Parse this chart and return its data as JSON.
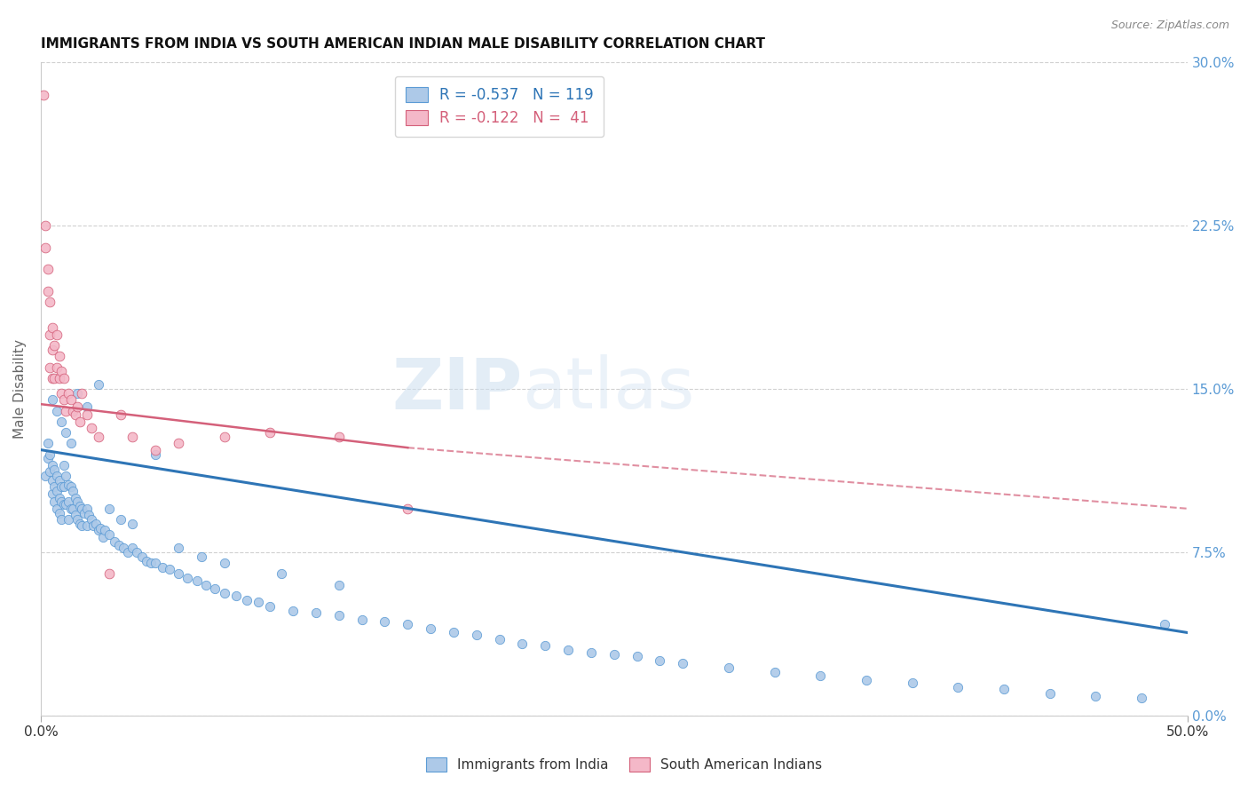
{
  "title": "IMMIGRANTS FROM INDIA VS SOUTH AMERICAN INDIAN MALE DISABILITY CORRELATION CHART",
  "source": "Source: ZipAtlas.com",
  "ylabel": "Male Disability",
  "xlim": [
    0.0,
    0.5
  ],
  "ylim": [
    0.0,
    0.3
  ],
  "xticks": [
    0.0,
    0.5
  ],
  "xtick_labels": [
    "0.0%",
    "50.0%"
  ],
  "yticks": [
    0.0,
    0.075,
    0.15,
    0.225,
    0.3
  ],
  "ytick_labels_right": [
    "0.0%",
    "7.5%",
    "15.0%",
    "22.5%",
    "30.0%"
  ],
  "series_india": {
    "color": "#adc9e8",
    "edge_color": "#5b9bd5",
    "R": -0.537,
    "N": 119,
    "trend_color": "#2e75b6",
    "trend_style": "solid",
    "trend_x0": 0.0,
    "trend_y0": 0.122,
    "trend_x1": 0.5,
    "trend_y1": 0.038
  },
  "series_sa_indian": {
    "color": "#f4b8c8",
    "edge_color": "#d4607a",
    "R": -0.122,
    "N": 41,
    "trend_color": "#d4607a",
    "trend_style": "solid",
    "trend_x0": 0.0,
    "trend_y0": 0.143,
    "trend_x1": 0.16,
    "trend_y1": 0.123,
    "trend_dash_x0": 0.16,
    "trend_dash_y0": 0.123,
    "trend_dash_x1": 0.5,
    "trend_dash_y1": 0.095
  },
  "legend_label_india": "Immigrants from India",
  "legend_label_sa": "South American Indians",
  "watermark_zip": "ZIP",
  "watermark_atlas": "atlas",
  "background_color": "#ffffff",
  "grid_color": "#cccccc",
  "title_fontsize": 11,
  "axis_label_color": "#5b9bd5",
  "india_x": [
    0.002,
    0.003,
    0.003,
    0.004,
    0.004,
    0.005,
    0.005,
    0.005,
    0.006,
    0.006,
    0.006,
    0.007,
    0.007,
    0.007,
    0.008,
    0.008,
    0.008,
    0.009,
    0.009,
    0.009,
    0.01,
    0.01,
    0.01,
    0.011,
    0.011,
    0.012,
    0.012,
    0.012,
    0.013,
    0.013,
    0.014,
    0.014,
    0.015,
    0.015,
    0.016,
    0.016,
    0.017,
    0.017,
    0.018,
    0.018,
    0.019,
    0.02,
    0.02,
    0.021,
    0.022,
    0.023,
    0.024,
    0.025,
    0.026,
    0.027,
    0.028,
    0.03,
    0.032,
    0.034,
    0.036,
    0.038,
    0.04,
    0.042,
    0.044,
    0.046,
    0.048,
    0.05,
    0.053,
    0.056,
    0.06,
    0.064,
    0.068,
    0.072,
    0.076,
    0.08,
    0.085,
    0.09,
    0.095,
    0.1,
    0.11,
    0.12,
    0.13,
    0.14,
    0.15,
    0.16,
    0.17,
    0.18,
    0.19,
    0.2,
    0.21,
    0.22,
    0.23,
    0.24,
    0.25,
    0.26,
    0.27,
    0.28,
    0.3,
    0.32,
    0.34,
    0.36,
    0.38,
    0.4,
    0.42,
    0.44,
    0.46,
    0.48,
    0.005,
    0.007,
    0.009,
    0.011,
    0.013,
    0.016,
    0.02,
    0.025,
    0.03,
    0.035,
    0.04,
    0.05,
    0.06,
    0.07,
    0.08,
    0.105,
    0.13,
    0.49
  ],
  "india_y": [
    0.11,
    0.125,
    0.118,
    0.12,
    0.112,
    0.115,
    0.108,
    0.102,
    0.113,
    0.105,
    0.098,
    0.11,
    0.103,
    0.095,
    0.108,
    0.1,
    0.093,
    0.105,
    0.098,
    0.09,
    0.115,
    0.105,
    0.097,
    0.11,
    0.097,
    0.106,
    0.098,
    0.09,
    0.105,
    0.095,
    0.103,
    0.095,
    0.1,
    0.092,
    0.098,
    0.09,
    0.096,
    0.088,
    0.095,
    0.087,
    0.093,
    0.095,
    0.087,
    0.092,
    0.09,
    0.087,
    0.088,
    0.085,
    0.086,
    0.082,
    0.085,
    0.083,
    0.08,
    0.078,
    0.077,
    0.075,
    0.077,
    0.075,
    0.073,
    0.071,
    0.07,
    0.07,
    0.068,
    0.067,
    0.065,
    0.063,
    0.062,
    0.06,
    0.058,
    0.056,
    0.055,
    0.053,
    0.052,
    0.05,
    0.048,
    0.047,
    0.046,
    0.044,
    0.043,
    0.042,
    0.04,
    0.038,
    0.037,
    0.035,
    0.033,
    0.032,
    0.03,
    0.029,
    0.028,
    0.027,
    0.025,
    0.024,
    0.022,
    0.02,
    0.018,
    0.016,
    0.015,
    0.013,
    0.012,
    0.01,
    0.009,
    0.008,
    0.145,
    0.14,
    0.135,
    0.13,
    0.125,
    0.148,
    0.142,
    0.152,
    0.095,
    0.09,
    0.088,
    0.12,
    0.077,
    0.073,
    0.07,
    0.065,
    0.06,
    0.042
  ],
  "sa_x": [
    0.001,
    0.002,
    0.002,
    0.003,
    0.003,
    0.004,
    0.004,
    0.004,
    0.005,
    0.005,
    0.005,
    0.006,
    0.006,
    0.007,
    0.007,
    0.008,
    0.008,
    0.009,
    0.009,
    0.01,
    0.01,
    0.011,
    0.012,
    0.013,
    0.014,
    0.015,
    0.016,
    0.017,
    0.018,
    0.02,
    0.022,
    0.025,
    0.03,
    0.035,
    0.04,
    0.05,
    0.06,
    0.08,
    0.1,
    0.13,
    0.16
  ],
  "sa_y": [
    0.285,
    0.215,
    0.225,
    0.195,
    0.205,
    0.175,
    0.19,
    0.16,
    0.168,
    0.178,
    0.155,
    0.17,
    0.155,
    0.175,
    0.16,
    0.155,
    0.165,
    0.148,
    0.158,
    0.145,
    0.155,
    0.14,
    0.148,
    0.145,
    0.14,
    0.138,
    0.142,
    0.135,
    0.148,
    0.138,
    0.132,
    0.128,
    0.065,
    0.138,
    0.128,
    0.122,
    0.125,
    0.128,
    0.13,
    0.128,
    0.095
  ]
}
